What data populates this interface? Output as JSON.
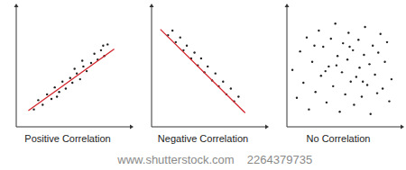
{
  "chart_data": [
    {
      "type": "scatter",
      "title": "Positive Correlation",
      "xlim": [
        0,
        10
      ],
      "ylim": [
        0,
        10
      ],
      "tick_labels": false,
      "series": [
        {
          "type": "scatter",
          "color": "#222222",
          "x": [
            1.6,
            2.0,
            2.4,
            2.8,
            3.2,
            3.5,
            3.9,
            4.2,
            4.5,
            4.9,
            5.1,
            5.5,
            5.8,
            6.1,
            6.4,
            6.8,
            7.1,
            7.4,
            7.7,
            8.0,
            8.3,
            6.0,
            5.3,
            3.7,
            7.9
          ],
          "values": [
            1.5,
            2.3,
            1.9,
            2.8,
            2.4,
            3.4,
            3.0,
            3.9,
            3.3,
            4.2,
            3.8,
            4.6,
            4.1,
            5.2,
            4.8,
            5.5,
            6.3,
            5.8,
            6.6,
            6.1,
            7.1,
            5.7,
            5.0,
            2.6,
            7.0
          ]
        },
        {
          "type": "line",
          "color": "#d2232a",
          "x": [
            1.1,
            8.9
          ],
          "values": [
            1.4,
            6.7
          ]
        }
      ]
    },
    {
      "type": "scatter",
      "title": "Negative Correlation",
      "xlim": [
        0,
        10
      ],
      "ylim": [
        0,
        10
      ],
      "tick_labels": false,
      "series": [
        {
          "type": "scatter",
          "color": "#222222",
          "x": [
            1.5,
            1.9,
            2.2,
            2.6,
            2.9,
            3.2,
            3.6,
            3.9,
            4.2,
            4.5,
            4.8,
            5.1,
            5.5,
            5.8,
            6.1,
            6.5,
            6.8,
            7.2,
            7.5,
            7.9
          ],
          "values": [
            7.9,
            8.3,
            7.3,
            7.7,
            6.6,
            7.0,
            5.9,
            6.4,
            5.3,
            5.9,
            4.7,
            5.2,
            4.0,
            4.6,
            3.5,
            3.9,
            2.8,
            3.3,
            2.2,
            2.6
          ]
        },
        {
          "type": "line",
          "color": "#d2232a",
          "x": [
            0.8,
            8.5
          ],
          "values": [
            8.4,
            1.2
          ]
        }
      ]
    },
    {
      "type": "scatter",
      "title": "No Correlation",
      "xlim": [
        0,
        10
      ],
      "ylim": [
        0,
        10
      ],
      "tick_labels": false,
      "series": [
        {
          "type": "scatter",
          "color": "#222222",
          "x": [
            0.5,
            0.9,
            1.2,
            1.5,
            1.8,
            2.0,
            2.3,
            2.6,
            2.9,
            3.1,
            3.3,
            3.6,
            3.8,
            4.0,
            4.2,
            4.4,
            4.6,
            4.8,
            5.0,
            5.1,
            5.3,
            5.5,
            5.6,
            5.8,
            6.0,
            6.1,
            6.3,
            6.5,
            6.6,
            6.8,
            7.0,
            7.1,
            7.3,
            7.5,
            7.6,
            7.8,
            8.0,
            8.2,
            8.3,
            8.5,
            8.7,
            8.9,
            9.1,
            9.3,
            9.5,
            6.9,
            5.7,
            4.5,
            3.5,
            2.5
          ],
          "values": [
            4.9,
            2.5,
            6.5,
            3.8,
            7.7,
            1.5,
            5.6,
            3.0,
            8.3,
            4.4,
            6.9,
            2.1,
            5.2,
            7.6,
            3.5,
            8.9,
            6.1,
            1.3,
            4.7,
            7.2,
            2.8,
            5.8,
            8.1,
            3.9,
            6.6,
            1.9,
            4.3,
            7.5,
            5.1,
            2.6,
            6.2,
            8.6,
            3.6,
            5.4,
            1.1,
            7.0,
            4.5,
            2.9,
            6.4,
            8.0,
            3.3,
            5.6,
            7.3,
            2.2,
            4.1,
            3.9,
            6.9,
            5.3,
            4.8,
            7.0
          ]
        }
      ]
    }
  ],
  "watermark": {
    "site": "www.shutterstock.com",
    "id": "2264379735"
  }
}
